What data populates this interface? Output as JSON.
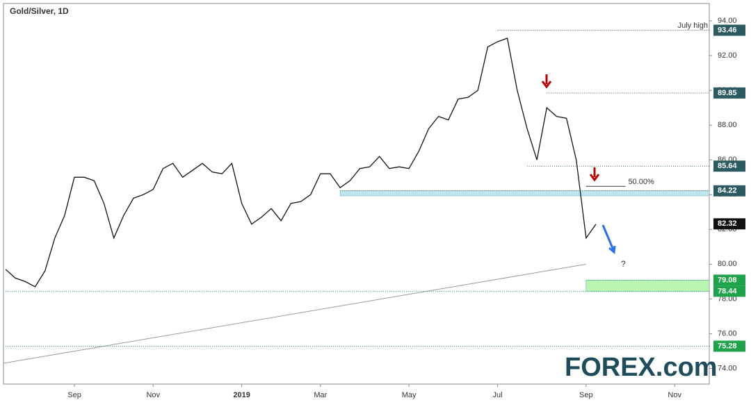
{
  "chart_data": {
    "type": "line",
    "title": "Gold/Silver, 1D",
    "categories": [
      null,
      null,
      null,
      null,
      null,
      null,
      null,
      "Sep",
      null,
      null,
      null,
      null,
      null,
      null,
      null,
      "Nov",
      null,
      null,
      null,
      null,
      null,
      null,
      null,
      null,
      "2019",
      null,
      null,
      null,
      null,
      null,
      null,
      null,
      "Mar",
      null,
      null,
      null,
      null,
      null,
      null,
      null,
      null,
      "May",
      null,
      null,
      null,
      null,
      null,
      null,
      null,
      null,
      "Jul",
      null,
      null,
      null,
      null,
      null,
      null,
      null,
      null,
      "Sep",
      null,
      null,
      null,
      null,
      null,
      null,
      null,
      null,
      "Nov",
      null,
      null,
      null
    ],
    "values": [
      79.7,
      79.2,
      79.0,
      78.7,
      79.6,
      81.5,
      82.8,
      85.0,
      85.0,
      84.8,
      83.5,
      81.5,
      82.8,
      83.8,
      84.0,
      84.3,
      85.5,
      85.8,
      85.0,
      85.4,
      85.8,
      85.3,
      85.2,
      85.8,
      83.5,
      82.3,
      82.7,
      83.2,
      82.5,
      83.5,
      83.6,
      84.0,
      85.2,
      85.2,
      84.4,
      84.8,
      85.5,
      85.6,
      86.2,
      85.5,
      85.6,
      85.5,
      86.5,
      87.8,
      88.5,
      88.3,
      89.5,
      89.6,
      90.0,
      92.5,
      92.8,
      93.0,
      90.0,
      87.8,
      86.0,
      89.0,
      88.5,
      88.4,
      86.0,
      81.5,
      82.3,
      null,
      null,
      null,
      null,
      null,
      null,
      null,
      null,
      null,
      null,
      null
    ],
    "color": "#111111",
    "ylim": [
      73.1,
      95.0
    ],
    "yticks": [
      {
        "value": 74,
        "label": "74.00"
      },
      {
        "value": 76,
        "label": "76.00"
      },
      {
        "value": 78,
        "label": "78.00"
      },
      {
        "value": 80,
        "label": "80.00"
      },
      {
        "value": 82,
        "label": "82.00"
      },
      {
        "value": 84,
        "label": "84.00"
      },
      {
        "value": 86,
        "label": "86.00"
      },
      {
        "value": 88,
        "label": "88.00"
      },
      {
        "value": 90,
        "label": "90.00"
      },
      {
        "value": 92,
        "label": "92.00"
      },
      {
        "value": 94,
        "label": "94.00"
      }
    ],
    "levels": [
      {
        "value": 93.46,
        "from": 50,
        "color": "#2b5b60"
      },
      {
        "value": 89.85,
        "from": 55,
        "color": "#2b5b60"
      },
      {
        "value": 85.64,
        "from": 53,
        "color": "#2b5b60"
      },
      {
        "value": 84.22,
        "from": 34,
        "color": "#2b5b60"
      },
      {
        "value": 82.32,
        "from": null,
        "color": "#111111"
      },
      {
        "value": 79.08,
        "from": 59,
        "color": "#1fa34a"
      },
      {
        "value": 78.44,
        "from": 0,
        "color": "#1fa34a"
      },
      {
        "value": 75.28,
        "from": 0,
        "color": "#1fa34a"
      }
    ],
    "zones": [
      {
        "from": 83.93,
        "to": 84.22,
        "start": 34,
        "color": "#bfe6ee"
      },
      {
        "from": 78.44,
        "to": 79.08,
        "start": 59,
        "color": "#b9f5b0"
      }
    ],
    "trendline": {
      "x": [
        0,
        59
      ],
      "y": [
        74.3,
        80.0
      ],
      "color": "#999999"
    },
    "fib": {
      "label": "50.00%",
      "value": 84.48,
      "x": [
        59,
        63
      ]
    },
    "annotations": {
      "july_high": "July high",
      "question": "?"
    },
    "logo": "FOREX.com"
  }
}
